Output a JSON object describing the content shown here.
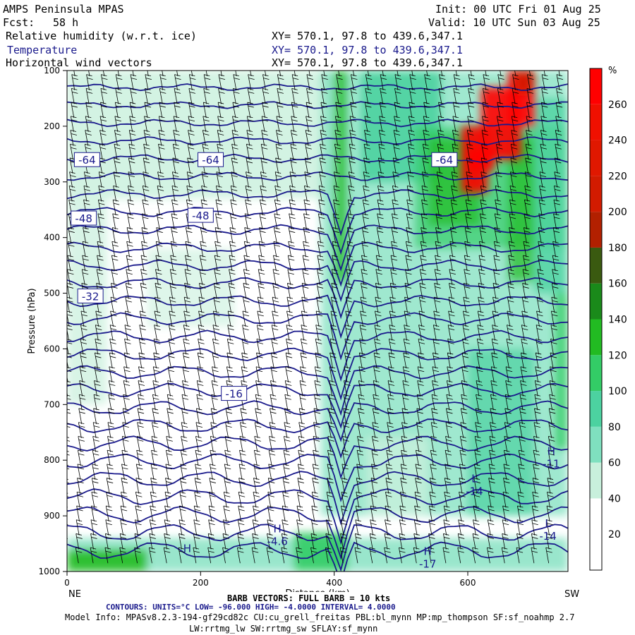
{
  "header": {
    "model": "AMPS Peninsula MPAS",
    "fcst_label": "Fcst:",
    "fcst_value": "58 h",
    "init": "Init: 00 UTC Fri 01 Aug 25",
    "valid": "Valid: 10 UTC Sun 03 Aug 25",
    "fields": [
      {
        "name": "Relative humidity (w.r.t. ice)",
        "xy": "XY= 570.1, 97.8 to 439.6,347.1"
      },
      {
        "name": "Temperature",
        "xy": "XY= 570.1, 97.8 to 439.6,347.1"
      },
      {
        "name": "Horizontal wind vectors",
        "xy": "XY= 570.1, 97.8 to 439.6,347.1"
      }
    ]
  },
  "footer": {
    "barb": "BARB VECTORS: FULL BARB = 10 kts",
    "contours": "CONTOURS: UNITS=°C LOW= -96.000 HIGH= -4.0000 INTERVAL= 4.0000",
    "model_info": "Model Info: MPASv8.2.3-194-gf29cd82c CU:cu_grell_freitas PBL:bl_mynn MP:mp_thompson SF:sf_noahmp 2.7",
    "model_info2": "LW:rrtmg_lw SW:rrtmg_sw SFLAY:sf_mynn"
  },
  "colors": {
    "contour": "#1a1a8c",
    "rh_scale": [
      "#ffffff",
      "#ffffff",
      "#c8f0dc",
      "#7fe0bf",
      "#4cd2a0",
      "#33cc66",
      "#22bb22",
      "#1a8a1a",
      "#3a5a10",
      "#b22000",
      "#d21b00",
      "#e01800",
      "#f01000",
      "#ff0000"
    ]
  },
  "chart_data": {
    "type": "heatmap",
    "title": "",
    "xlabel": "Distance (km)",
    "ylabel": "Pressure (hPa)",
    "xlim": [
      0,
      750
    ],
    "ylim": [
      1000,
      100
    ],
    "x_ticks": [
      0,
      200,
      400,
      600
    ],
    "y_ticks": [
      100,
      200,
      300,
      400,
      500,
      600,
      700,
      800,
      900,
      1000
    ],
    "left_end_label": "NE",
    "right_end_label": "SW",
    "colorbar": {
      "unit": "%",
      "ticks": [
        20,
        40,
        60,
        80,
        100,
        120,
        140,
        160,
        180,
        200,
        220,
        240,
        260
      ],
      "min": 0,
      "max": 280
    },
    "temperature_contour_labels": [
      {
        "text": "-64",
        "x": 30,
        "p": 260
      },
      {
        "text": "-64",
        "x": 215,
        "p": 260
      },
      {
        "text": "-64",
        "x": 565,
        "p": 260
      },
      {
        "text": "-48",
        "x": 25,
        "p": 365
      },
      {
        "text": "-48",
        "x": 200,
        "p": 360
      },
      {
        "text": "-32",
        "x": 35,
        "p": 505
      },
      {
        "text": "-16",
        "x": 250,
        "p": 680
      }
    ],
    "extrema_labels": [
      {
        "type": "H",
        "value": "-11",
        "x": 725,
        "p": 795
      },
      {
        "type": "H",
        "value": "-4.6",
        "x": 315,
        "p": 935
      },
      {
        "type": "H",
        "value": "-17",
        "x": 540,
        "p": 975
      },
      {
        "type": "H",
        "value": "",
        "x": 180,
        "p": 970
      },
      {
        "type": "L",
        "value": "-14",
        "x": 720,
        "p": 925
      },
      {
        "type": "L",
        "value": "-14",
        "x": 610,
        "p": 845
      }
    ]
  }
}
